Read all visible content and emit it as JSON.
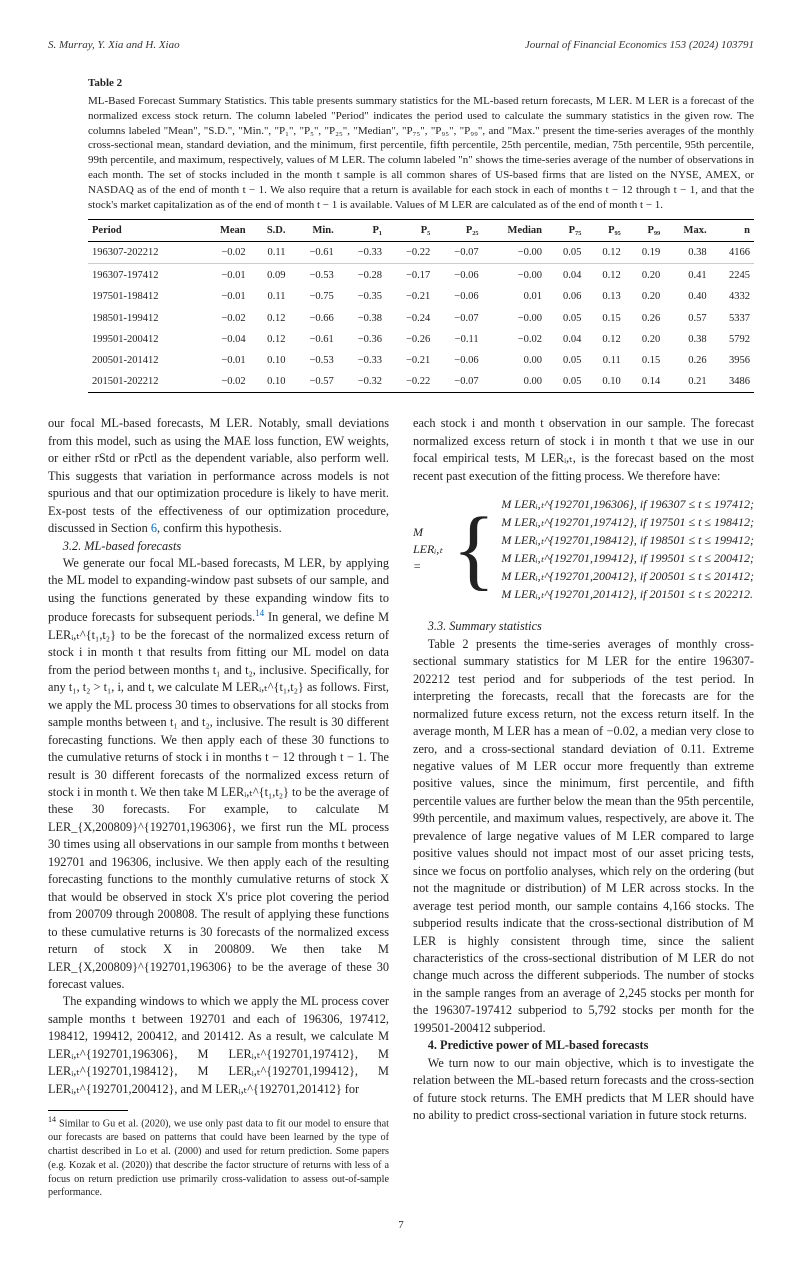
{
  "header": {
    "authors": "S. Murray, Y. Xia and H. Xiao",
    "journal": "Journal of Financial Economics 153 (2024) 103791"
  },
  "table": {
    "label": "Table 2",
    "caption": "ML-Based Forecast Summary Statistics. This table presents summary statistics for the ML-based return forecasts, M LER. M LER is a forecast of the normalized excess stock return. The column labeled \"Period\" indicates the period used to calculate the summary statistics in the given row. The columns labeled \"Mean\", \"S.D.\", \"Min.\", \"P₁\", \"P₅\", \"P₂₅\", \"Median\", \"P₇₅\", \"P₉₅\", \"P₉₉\", and \"Max.\" present the time-series averages of the monthly cross-sectional mean, standard deviation, and the minimum, first percentile, fifth percentile, 25th percentile, median, 75th percentile, 95th percentile, 99th percentile, and maximum, respectively, values of M LER. The column labeled \"n\" shows the time-series average of the number of observations in each month. The set of stocks included in the month t sample is all common shares of US-based firms that are listed on the NYSE, AMEX, or NASDAQ as of the end of month t − 1. We also require that a return is available for each stock in each of months t − 12 through t − 1, and that the stock's market capitalization as of the end of month t − 1 is available. Values of M LER are calculated as of the end of month t − 1.",
    "columns": [
      "Period",
      "Mean",
      "S.D.",
      "Min.",
      "P₁",
      "P₅",
      "P₂₅",
      "Median",
      "P₇₅",
      "P₉₅",
      "P₉₉",
      "Max.",
      "n"
    ],
    "group1": [
      [
        "196307-202212",
        "−0.02",
        "0.11",
        "−0.61",
        "−0.33",
        "−0.22",
        "−0.07",
        "−0.00",
        "0.05",
        "0.12",
        "0.19",
        "0.38",
        "4166"
      ]
    ],
    "group2": [
      [
        "196307-197412",
        "−0.01",
        "0.09",
        "−0.53",
        "−0.28",
        "−0.17",
        "−0.06",
        "−0.00",
        "0.04",
        "0.12",
        "0.20",
        "0.41",
        "2245"
      ],
      [
        "197501-198412",
        "−0.01",
        "0.11",
        "−0.75",
        "−0.35",
        "−0.21",
        "−0.06",
        "0.01",
        "0.06",
        "0.13",
        "0.20",
        "0.40",
        "4332"
      ],
      [
        "198501-199412",
        "−0.02",
        "0.12",
        "−0.66",
        "−0.38",
        "−0.24",
        "−0.07",
        "−0.00",
        "0.05",
        "0.15",
        "0.26",
        "0.57",
        "5337"
      ],
      [
        "199501-200412",
        "−0.04",
        "0.12",
        "−0.61",
        "−0.36",
        "−0.26",
        "−0.11",
        "−0.02",
        "0.04",
        "0.12",
        "0.20",
        "0.38",
        "5792"
      ],
      [
        "200501-201412",
        "−0.01",
        "0.10",
        "−0.53",
        "−0.33",
        "−0.21",
        "−0.06",
        "0.00",
        "0.05",
        "0.11",
        "0.15",
        "0.26",
        "3956"
      ],
      [
        "201501-202212",
        "−0.02",
        "0.10",
        "−0.57",
        "−0.32",
        "−0.22",
        "−0.07",
        "0.00",
        "0.05",
        "0.10",
        "0.14",
        "0.21",
        "3486"
      ]
    ]
  },
  "body": {
    "intro_cont": "our focal ML-based forecasts, M LER. Notably, small deviations from this model, such as using the MAE loss function, EW weights, or either rStd or rPctl as the dependent variable, also perform well. This suggests that variation in performance across models is not spurious and that our optimization procedure is likely to have merit. Ex-post tests of the effectiveness of our optimization procedure, discussed in Section ",
    "intro_link": "6",
    "intro_tail": ", confirm this hypothesis.",
    "sec32_heading": "3.2. ML-based forecasts",
    "sec32_p1a": "We generate our focal ML-based forecasts, M LER, by applying the ML model to expanding-window past subsets of our sample, and using the functions generated by these expanding window fits to produce forecasts for subsequent periods.",
    "sec32_p1b": " In general, we define M LERᵢ,ₜ^{t₁,t₂} to be the forecast of the normalized excess return of stock i in month t that results from fitting our ML model on data from the period between months t₁ and t₂, inclusive. Specifically, for any t₁, t₂ > t₁, i, and t, we calculate M LERᵢ,ₜ^{t₁,t₂} as follows. First, we apply the ML process 30 times to observations for all stocks from sample months between t₁ and t₂, inclusive. The result is 30 different forecasting functions. We then apply each of these 30 functions to the cumulative returns of stock i in months t − 12 through t − 1. The result is 30 different forecasts of the normalized excess return of stock i in month t. We then take M LERᵢ,ₜ^{t₁,t₂} to be the average of these 30 forecasts. For example, to calculate M LER_{X,200809}^{192701,196306}, we first run the ML process 30 times using all observations in our sample from months t between 192701 and 196306, inclusive. We then apply each of the resulting forecasting functions to the monthly cumulative returns of stock X that would be observed in stock X's price plot covering the period from 200709 through 200808. The result of applying these functions to these cumulative returns is 30 forecasts of the normalized excess return of stock X in 200809. We then take M LER_{X,200809}^{192701,196306} to be the average of these 30 forecast values.",
    "sec32_p2": "The expanding windows to which we apply the ML process cover sample months t between 192701 and each of 196306, 197412, 198412, 199412, 200412, and 201412. As a result, we calculate M LERᵢ,ₜ^{192701,196306}, M LERᵢ,ₜ^{192701,197412}, M LERᵢ,ₜ^{192701,198412}, M LERᵢ,ₜ^{192701,199412}, M LERᵢ,ₜ^{192701,200412}, and M LERᵢ,ₜ^{192701,201412} for",
    "footnote": "Similar to Gu et al. (2020), we use only past data to fit our model to ensure that our forecasts are based on patterns that could have been learned by the type of chartist described in Lo et al. (2000) and used for return prediction. Some papers (e.g. Kozak et al. (2020)) that describe the factor structure of returns with less of a focus on return prediction use primarily cross-validation to assess out-of-sample performance.",
    "col2_top": "each stock i and month t observation in our sample. The forecast normalized excess return of stock i in month t that we use in our focal empirical tests, M LERᵢ,ₜ, is the forecast based on the most recent past execution of the fitting process. We therefore have:",
    "eq_lhs": "M LERᵢ,ₜ =",
    "eq_rows": [
      "M LERᵢ,ₜ^{192701,196306},   if 196307 ≤ t ≤ 197412;",
      "M LERᵢ,ₜ^{192701,197412},   if 197501 ≤ t ≤ 198412;",
      "M LERᵢ,ₜ^{192701,198412},   if 198501 ≤ t ≤ 199412;",
      "M LERᵢ,ₜ^{192701,199412},   if 199501 ≤ t ≤ 200412;",
      "M LERᵢ,ₜ^{192701,200412},   if 200501 ≤ t ≤ 201412;",
      "M LERᵢ,ₜ^{192701,201412},   if 201501 ≤ t ≤ 202212."
    ],
    "sec33_heading": "3.3. Summary statistics",
    "sec33_p1": "Table 2 presents the time-series averages of monthly cross-sectional summary statistics for M LER for the entire 196307-202212 test period and for subperiods of the test period. In interpreting the forecasts, recall that the forecasts are for the normalized future excess return, not the excess return itself. In the average month, M LER has a mean of −0.02, a median very close to zero, and a cross-sectional standard deviation of 0.11. Extreme negative values of M LER occur more frequently than extreme positive values, since the minimum, first percentile, and fifth percentile values are further below the mean than the 95th percentile, 99th percentile, and maximum values, respectively, are above it. The prevalence of large negative values of M LER compared to large positive values should not impact most of our asset pricing tests, since we focus on portfolio analyses, which rely on the ordering (but not the magnitude or distribution) of M LER across stocks. In the average test period month, our sample contains 4,166 stocks. The subperiod results indicate that the cross-sectional distribution of M LER is highly consistent through time, since the salient characteristics of the cross-sectional distribution of M LER do not change much across the different subperiods. The number of stocks in the sample ranges from an average of 2,245 stocks per month for the 196307-197412 subperiod to 5,792 stocks per month for the 199501-200412 subperiod.",
    "sec4_heading": "4. Predictive power of ML-based forecasts",
    "sec4_p1": "We turn now to our main objective, which is to investigate the relation between the ML-based return forecasts and the cross-section of future stock returns. The EMH predicts that M LER should have no ability to predict cross-sectional variation in future stock returns."
  },
  "page_number": "7"
}
